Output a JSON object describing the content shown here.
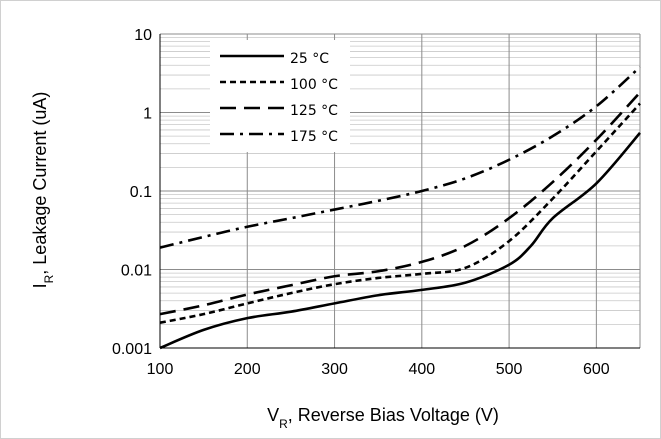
{
  "chart_data": {
    "type": "line",
    "xlabel": {
      "main": "V",
      "sub": "R",
      "rest": ", Reverse Bias Voltage (V)"
    },
    "ylabel": {
      "main": "I",
      "sub": "R",
      "rest": ", Leakage Current (uA)"
    },
    "xlim": [
      100,
      650
    ],
    "ylim": [
      0.001,
      10
    ],
    "yscale": "log",
    "grid": true,
    "legend_position": "top-left",
    "x_ticks": [
      100,
      200,
      300,
      400,
      500,
      600
    ],
    "x_tick_labels": [
      "100",
      "200",
      "300",
      "400",
      "500",
      "600"
    ],
    "y_ticks": [
      0.001,
      0.01,
      0.1,
      1,
      10
    ],
    "y_tick_labels": [
      "0.001",
      "0.01",
      "0.1",
      "1",
      "10"
    ],
    "series": [
      {
        "name": "25 °C",
        "dash": "solid",
        "points": [
          [
            100,
            0.001
          ],
          [
            150,
            0.0017
          ],
          [
            200,
            0.0024
          ],
          [
            250,
            0.0029
          ],
          [
            300,
            0.0037
          ],
          [
            350,
            0.0047
          ],
          [
            400,
            0.0055
          ],
          [
            450,
            0.0068
          ],
          [
            500,
            0.0115
          ],
          [
            525,
            0.02
          ],
          [
            550,
            0.045
          ],
          [
            600,
            0.125
          ],
          [
            650,
            0.55
          ]
        ]
      },
      {
        "name": "100 °C",
        "dash": "short",
        "points": [
          [
            100,
            0.0021
          ],
          [
            150,
            0.0027
          ],
          [
            200,
            0.0037
          ],
          [
            250,
            0.005
          ],
          [
            300,
            0.0065
          ],
          [
            350,
            0.0078
          ],
          [
            400,
            0.0088
          ],
          [
            450,
            0.0105
          ],
          [
            500,
            0.023
          ],
          [
            550,
            0.08
          ],
          [
            600,
            0.32
          ],
          [
            650,
            1.3
          ]
        ]
      },
      {
        "name": "125 °C",
        "dash": "long",
        "points": [
          [
            100,
            0.0027
          ],
          [
            150,
            0.0035
          ],
          [
            200,
            0.0048
          ],
          [
            250,
            0.0063
          ],
          [
            300,
            0.0082
          ],
          [
            350,
            0.0095
          ],
          [
            400,
            0.0125
          ],
          [
            450,
            0.02
          ],
          [
            500,
            0.045
          ],
          [
            550,
            0.13
          ],
          [
            600,
            0.45
          ],
          [
            650,
            1.8
          ]
        ]
      },
      {
        "name": "175 °C",
        "dash": "dashdot",
        "points": [
          [
            100,
            0.019
          ],
          [
            150,
            0.026
          ],
          [
            200,
            0.035
          ],
          [
            250,
            0.045
          ],
          [
            300,
            0.058
          ],
          [
            350,
            0.075
          ],
          [
            400,
            0.1
          ],
          [
            450,
            0.145
          ],
          [
            500,
            0.25
          ],
          [
            550,
            0.5
          ],
          [
            600,
            1.2
          ],
          [
            650,
            3.8
          ]
        ]
      }
    ]
  }
}
